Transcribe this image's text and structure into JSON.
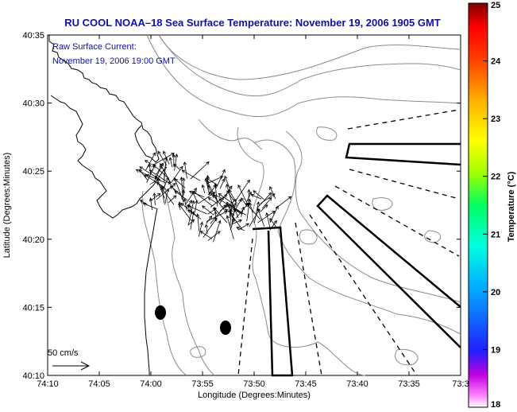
{
  "title": "RU COOL  NOAA–18  Sea Surface Temperature:  November 19, 2006 1905 GMT",
  "annotation": {
    "line1": "Raw Surface Current:",
    "line2": "November 19, 2006 19:00 GMT"
  },
  "scale_label": "50 cm/s",
  "colorbar": {
    "label": "Temperature (°C)",
    "min": 18,
    "max": 25,
    "ticks": [
      "18",
      "19",
      "20",
      "21",
      "22",
      "23",
      "24",
      "25"
    ]
  },
  "chart_data": {
    "type": "map",
    "xlabel": "Longitude (Degrees:Minutes)",
    "ylabel": "Latitude (Degrees:Minutes)",
    "x_ticks": [
      "74:10",
      "74:05",
      "74:00",
      "73:55",
      "73:50",
      "73:45",
      "73:40",
      "73:35",
      "73:3"
    ],
    "y_ticks": [
      "40:10",
      "40:15",
      "40:20",
      "40:25",
      "40:30",
      "40:35"
    ],
    "xlim_minutes_west": [
      70,
      30
    ],
    "ylim_minutes_north": [
      10,
      35
    ]
  }
}
